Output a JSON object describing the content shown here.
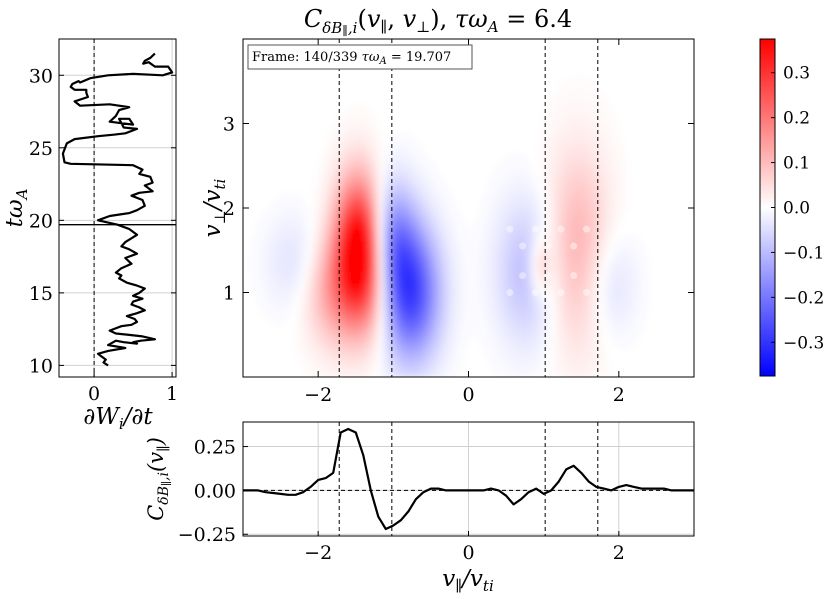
{
  "chart_data": [
    {
      "panel": "left",
      "type": "line",
      "xlabel": "∂W_i/∂t",
      "ylabel": "tω_A",
      "xlim": [
        -0.45,
        1.05
      ],
      "ylim": [
        9.2,
        32.5
      ],
      "xticks": [
        0,
        1
      ],
      "yticks": [
        10,
        15,
        20,
        25,
        30
      ],
      "hlines": [
        19.7
      ],
      "vlines": [
        0
      ],
      "grid": true,
      "series": [
        {
          "x": [
            0.78,
            0.72,
            0.65,
            0.63,
            0.7,
            0.78,
            0.95,
            1.0,
            0.88,
            0.5,
            0.18,
            -0.05,
            -0.18,
            -0.2,
            -0.28,
            -0.3,
            -0.25,
            -0.1,
            -0.1,
            -0.08,
            -0.25,
            -0.18,
            0.2,
            0.45,
            0.32,
            0.28,
            0.2,
            0.5,
            0.45,
            0.32,
            0.38,
            0.55,
            0.4,
            0.25,
            0.05,
            -0.25,
            -0.35,
            -0.4,
            -0.38,
            -0.3,
            0.5,
            0.62,
            0.58,
            0.72,
            0.75,
            0.65,
            0.75,
            0.58,
            0.48,
            0.62,
            0.65,
            0.55,
            0.45,
            0.2,
            0.05,
            0.3,
            0.45,
            0.55,
            0.4,
            0.35,
            0.45,
            0.55,
            0.4,
            0.48,
            0.35,
            0.28,
            0.35,
            0.32,
            0.42,
            0.55,
            0.65,
            0.58,
            0.5,
            0.62,
            0.5,
            0.48,
            0.58,
            0.65,
            0.55,
            0.42,
            0.52,
            0.55,
            0.48,
            0.35,
            0.25,
            0.2,
            0.28,
            0.45,
            0.62,
            0.7,
            0.78,
            0.6,
            0.5,
            0.55,
            0.38,
            0.28,
            0.18,
            0.4,
            0.18,
            0.05,
            0.1,
            0.15,
            0.12,
            0.18
          ],
          "y": [
            31.5,
            31.2,
            31.0,
            30.8,
            30.9,
            30.6,
            30.6,
            30.2,
            30.0,
            30.1,
            30.0,
            29.8,
            29.5,
            29.6,
            29.4,
            29.2,
            29.0,
            29.0,
            28.8,
            28.5,
            28.2,
            27.9,
            28.0,
            27.8,
            27.6,
            27.2,
            26.8,
            26.6,
            27.0,
            27.0,
            26.4,
            26.3,
            26.0,
            25.9,
            25.8,
            25.6,
            25.3,
            24.6,
            24.0,
            23.9,
            23.8,
            23.5,
            23.2,
            23.0,
            22.6,
            22.4,
            22.0,
            21.9,
            21.7,
            21.4,
            21.0,
            20.7,
            20.5,
            20.3,
            20.0,
            19.7,
            19.4,
            19.0,
            18.5,
            18.2,
            18.0,
            17.7,
            17.4,
            17.0,
            16.7,
            16.4,
            16.2,
            16.0,
            15.7,
            15.5,
            15.3,
            15.0,
            14.8,
            14.6,
            14.4,
            14.2,
            14.0,
            13.8,
            13.6,
            13.4,
            13.2,
            13.0,
            12.8,
            12.7,
            12.5,
            12.4,
            12.2,
            12.1,
            12.0,
            11.9,
            11.8,
            11.7,
            11.6,
            11.5,
            11.6,
            11.7,
            11.4,
            11.2,
            11.0,
            10.8,
            10.6,
            10.4,
            10.2,
            10.0
          ]
        }
      ]
    },
    {
      "panel": "main",
      "type": "heatmap",
      "title": "C_{δB∥,i}(v∥, v⊥), τω_A = 6.4",
      "annotation": "Frame: 140/339 τω_A = 19.707",
      "xlabel": "",
      "ylabel": "v⊥/v_ti",
      "xlim": [
        -3,
        3
      ],
      "ylim": [
        0,
        4
      ],
      "xticks": [
        -2,
        0,
        2
      ],
      "yticks": [
        1,
        2,
        3
      ],
      "vlines": [
        -1.72,
        -1.02,
        1.02,
        1.72
      ],
      "colormap": "bwr",
      "clim": [
        -0.375,
        0.375
      ],
      "blobs": [
        {
          "vpar": -1.45,
          "vperp": 1.6,
          "value": 0.36,
          "wpar": 0.22,
          "wperp": 0.55
        },
        {
          "vpar": -1.3,
          "vperp": 1.05,
          "value": 0.16,
          "wpar": 0.35,
          "wperp": 0.5
        },
        {
          "vpar": -1.85,
          "vperp": 1.05,
          "value": 0.1,
          "wpar": 0.25,
          "wperp": 0.45
        },
        {
          "vpar": -0.8,
          "vperp": 1.0,
          "value": -0.32,
          "wpar": 0.28,
          "wperp": 0.55
        },
        {
          "vpar": -1.05,
          "vperp": 1.6,
          "value": -0.18,
          "wpar": 0.22,
          "wperp": 0.5
        },
        {
          "vpar": -2.25,
          "vperp": 1.35,
          "value": -0.05,
          "wpar": 0.3,
          "wperp": 0.4
        },
        {
          "vpar": 0.8,
          "vperp": 1.25,
          "value": -0.1,
          "wpar": 0.3,
          "wperp": 0.6
        },
        {
          "vpar": 0.95,
          "vperp": 1.3,
          "value": 0.1,
          "wpar": 0.1,
          "wperp": 0.25
        },
        {
          "vpar": 1.45,
          "vperp": 1.5,
          "value": 0.12,
          "wpar": 0.3,
          "wperp": 0.8
        },
        {
          "vpar": 1.85,
          "vperp": 1.1,
          "value": -0.06,
          "wpar": 0.25,
          "wperp": 0.45
        }
      ]
    },
    {
      "panel": "bottom",
      "type": "line",
      "xlabel": "v∥/v_ti",
      "ylabel": "C_{δB∥,i}(v∥)",
      "xlim": [
        -3,
        3
      ],
      "ylim": [
        -0.26,
        0.39
      ],
      "xticks": [
        -2,
        0,
        2
      ],
      "yticks": [
        -0.25,
        0.0,
        0.25
      ],
      "ytick_labels": [
        "−0.25",
        "0.00",
        "0.25"
      ],
      "vlines": [
        -1.72,
        -1.02,
        1.02,
        1.72
      ],
      "hlines": [
        0
      ],
      "grid": true,
      "series": [
        {
          "x": [
            -3.0,
            -2.9,
            -2.8,
            -2.7,
            -2.6,
            -2.5,
            -2.4,
            -2.3,
            -2.2,
            -2.1,
            -2.0,
            -1.9,
            -1.8,
            -1.7,
            -1.6,
            -1.5,
            -1.4,
            -1.3,
            -1.2,
            -1.1,
            -1.0,
            -0.9,
            -0.8,
            -0.7,
            -0.6,
            -0.5,
            -0.4,
            -0.3,
            -0.2,
            -0.1,
            0.0,
            0.1,
            0.2,
            0.3,
            0.4,
            0.5,
            0.6,
            0.7,
            0.8,
            0.9,
            1.0,
            1.1,
            1.2,
            1.3,
            1.4,
            1.5,
            1.6,
            1.7,
            1.8,
            1.9,
            2.0,
            2.1,
            2.2,
            2.3,
            2.4,
            2.5,
            2.6,
            2.7,
            2.8,
            2.9,
            3.0
          ],
          "y": [
            0.0,
            0.0,
            0.0,
            -0.01,
            -0.015,
            -0.02,
            -0.025,
            -0.025,
            -0.01,
            0.02,
            0.06,
            0.07,
            0.1,
            0.33,
            0.35,
            0.33,
            0.2,
            0.0,
            -0.15,
            -0.22,
            -0.2,
            -0.17,
            -0.12,
            -0.05,
            -0.01,
            0.01,
            0.01,
            0.0,
            0.0,
            0.0,
            0.0,
            0.0,
            0.0,
            0.01,
            0.0,
            -0.03,
            -0.08,
            -0.05,
            -0.01,
            0.01,
            -0.02,
            0.0,
            0.05,
            0.12,
            0.14,
            0.1,
            0.05,
            0.02,
            0.01,
            0.0,
            0.02,
            0.03,
            0.02,
            0.01,
            0.01,
            0.01,
            0.01,
            0.0,
            0.0,
            0.0,
            0.0
          ]
        }
      ]
    },
    {
      "panel": "colorbar",
      "type": "colorbar",
      "ticks": [
        0.3,
        0.2,
        0.1,
        0.0,
        -0.1,
        -0.2,
        -0.3
      ],
      "tick_labels": [
        "0.3",
        "0.2",
        "0.1",
        "0.0",
        "−0.1",
        "−0.2",
        "−0.3"
      ],
      "range": [
        -0.375,
        0.375
      ]
    }
  ]
}
